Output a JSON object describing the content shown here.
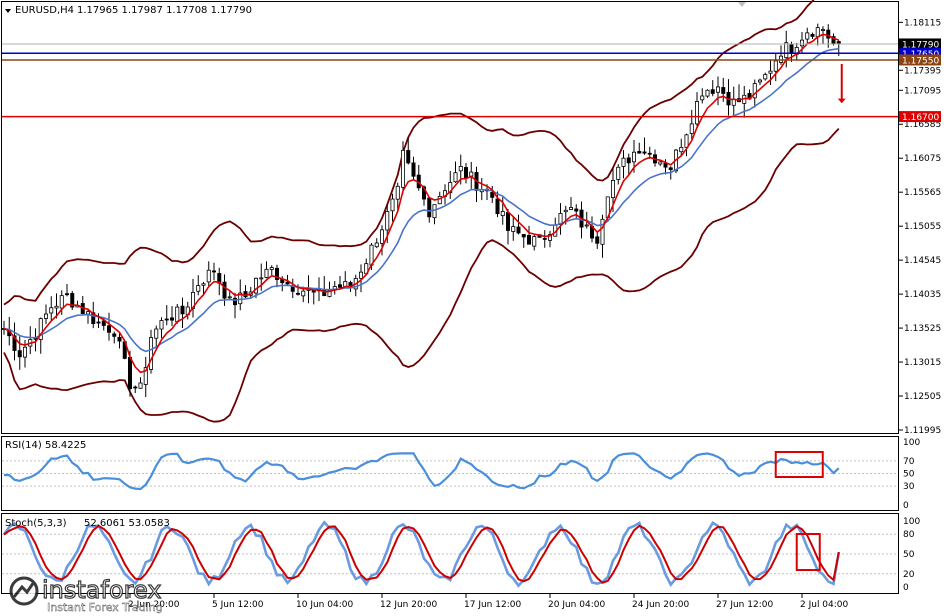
{
  "header": {
    "symbol": "EURUSD,H4",
    "ohlc": "1.17965 1.17987 1.17708 1.17790"
  },
  "price_panel": {
    "ticks": [
      {
        "label": "1.18115",
        "v": 1.18115
      },
      {
        "label": "1.17395",
        "v": 1.17395
      },
      {
        "label": "1.17095",
        "v": 1.17095
      },
      {
        "label": "1.16585",
        "v": 1.16585
      },
      {
        "label": "1.16075",
        "v": 1.16075
      },
      {
        "label": "1.15565",
        "v": 1.15565
      },
      {
        "label": "1.15055",
        "v": 1.15055
      },
      {
        "label": "1.14545",
        "v": 1.14545
      },
      {
        "label": "1.14035",
        "v": 1.14035
      },
      {
        "label": "1.13525",
        "v": 1.13525
      },
      {
        "label": "1.13015",
        "v": 1.13015
      },
      {
        "label": "1.12505",
        "v": 1.12505
      },
      {
        "label": "1.11995",
        "v": 1.11995
      }
    ],
    "levels": [
      {
        "label": "1.17790",
        "v": 1.1779,
        "color": "#b0b0b0",
        "bg": "#000000",
        "fg": "#ffffff"
      },
      {
        "label": "1.17650",
        "v": 1.1765,
        "color": "#0000cc",
        "bg": "#0000cc",
        "fg": "#ffffff"
      },
      {
        "label": "1.17550",
        "v": 1.1755,
        "color": "#8b4513",
        "bg": "#8b4513",
        "fg": "#ffffff"
      },
      {
        "label": "1.16700",
        "v": 1.167,
        "color": "#dd0000",
        "bg": "#dd0000",
        "fg": "#ffffff"
      }
    ]
  },
  "rsi_panel": {
    "label": "RSI(14) 58.4225",
    "ticks": [
      {
        "label": "100",
        "v": 100
      },
      {
        "label": "70",
        "v": 70
      },
      {
        "label": "50",
        "v": 50
      },
      {
        "label": "30",
        "v": 30
      },
      {
        "label": "0",
        "v": 0
      }
    ]
  },
  "stoch_panel": {
    "label_prefix": "Stoch(5,3,3)",
    "label_values": "52.6061 53.0583",
    "ticks": [
      {
        "label": "100",
        "v": 100
      },
      {
        "label": "80",
        "v": 80
      },
      {
        "label": "50",
        "v": 50
      },
      {
        "label": "20",
        "v": 20
      },
      {
        "label": "0",
        "v": 0
      }
    ]
  },
  "time_axis": [
    {
      "label": "2 Jun 20:00",
      "i": 24
    },
    {
      "label": "5 Jun 12:00",
      "i": 40
    },
    {
      "label": "10 Jun 04:00",
      "i": 56
    },
    {
      "label": "12 Jun 20:00",
      "i": 72
    },
    {
      "label": "17 Jun 12:00",
      "i": 88
    },
    {
      "label": "20 Jun 04:00",
      "i": 104
    },
    {
      "label": "24 Jun 20:00",
      "i": 120
    },
    {
      "label": "27 Jun 12:00",
      "i": 136
    },
    {
      "label": "2 Jul 04:00",
      "i": 152
    }
  ],
  "watermark": {
    "name": "instaforex",
    "tagline": "Instant Forex Trading"
  },
  "colors": {
    "candle": "#000000",
    "ma_fast": "#dd0000",
    "ma_slow": "#4a74c9",
    "bollinger": "#6b0000",
    "rsi": "#4a8fdb",
    "stoch_main": "#6a9be0",
    "stoch_signal": "#cc0000",
    "annotation": "#dd0000"
  },
  "chart_data": {
    "type": "candlestick",
    "symbol": "EURUSD",
    "timeframe": "H4",
    "ylim": [
      1.11995,
      1.18375
    ],
    "close_anchors": [
      [
        0,
        1.1352
      ],
      [
        3,
        1.1315
      ],
      [
        6,
        1.1345
      ],
      [
        9,
        1.1385
      ],
      [
        12,
        1.14
      ],
      [
        15,
        1.138
      ],
      [
        18,
        1.136
      ],
      [
        21,
        1.135
      ],
      [
        24,
        1.127
      ],
      [
        26,
        1.126
      ],
      [
        28,
        1.134
      ],
      [
        31,
        1.137
      ],
      [
        34,
        1.1375
      ],
      [
        37,
        1.142
      ],
      [
        40,
        1.144
      ],
      [
        43,
        1.139
      ],
      [
        46,
        1.14
      ],
      [
        48,
        1.1425
      ],
      [
        51,
        1.144
      ],
      [
        54,
        1.142
      ],
      [
        57,
        1.141
      ],
      [
        60,
        1.14
      ],
      [
        63,
        1.1415
      ],
      [
        66,
        1.1415
      ],
      [
        69,
        1.1455
      ],
      [
        72,
        1.1505
      ],
      [
        75,
        1.1555
      ],
      [
        76,
        1.161
      ],
      [
        78,
        1.1575
      ],
      [
        81,
        1.153
      ],
      [
        84,
        1.1565
      ],
      [
        87,
        1.159
      ],
      [
        90,
        1.157
      ],
      [
        93,
        1.155
      ],
      [
        96,
        1.15
      ],
      [
        99,
        1.149
      ],
      [
        102,
        1.148
      ],
      [
        105,
        1.1515
      ],
      [
        108,
        1.153
      ],
      [
        111,
        1.15
      ],
      [
        113,
        1.149
      ],
      [
        115,
        1.156
      ],
      [
        118,
        1.16
      ],
      [
        121,
        1.1625
      ],
      [
        124,
        1.161
      ],
      [
        127,
        1.1595
      ],
      [
        130,
        1.165
      ],
      [
        133,
        1.171
      ],
      [
        136,
        1.1715
      ],
      [
        139,
        1.169
      ],
      [
        142,
        1.17
      ],
      [
        145,
        1.173
      ],
      [
        148,
        1.177
      ],
      [
        150,
        1.1775
      ],
      [
        153,
        1.18
      ],
      [
        156,
        1.1802
      ],
      [
        158,
        1.1779
      ]
    ],
    "rsi": {
      "name": "RSI(14)",
      "last": 58.4225,
      "ylim": [
        0,
        100
      ],
      "levels": [
        70,
        50,
        30
      ]
    },
    "stochastic": {
      "name": "Stoch(5,3,3)",
      "main_last": 52.6061,
      "signal_last": 53.0583,
      "ylim": [
        0,
        100
      ],
      "levels": [
        80,
        50,
        20
      ]
    },
    "horizontal_levels": [
      1.1779,
      1.1765,
      1.1755,
      1.167
    ],
    "annotation": "red arrow pointing down from 1.1755 toward 1.1670"
  }
}
